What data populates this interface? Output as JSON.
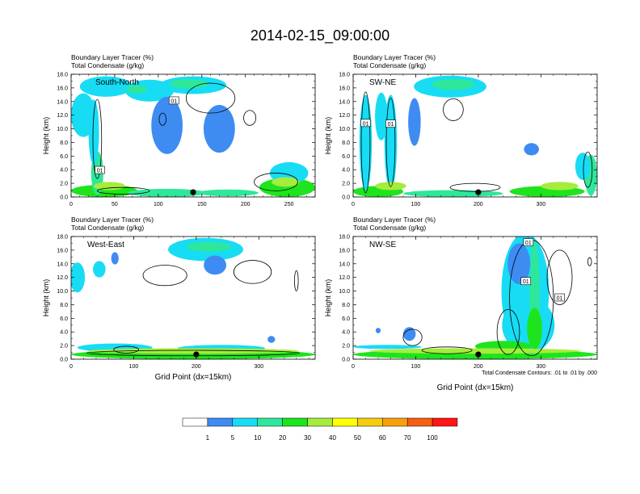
{
  "chart_data": {
    "title": "2014-02-15_09:00:00",
    "field_label": "Boundary Layer Tracer    (%)",
    "contour_field_label": "Total Condensate    (g/kg)",
    "xlabel": "Grid Point (dx=15km)",
    "ylabel": "Height (km)",
    "ylim": [
      0,
      18
    ],
    "y_ticks": [
      "0.0",
      "2.0",
      "4.0",
      "6.0",
      "8.0",
      "10.0",
      "12.0",
      "14.0",
      "16.0",
      "18.0"
    ],
    "contour_info": "Total Condensate Contours: .01 to .01 by .000",
    "colorbar": {
      "levels": [
        "1",
        "5",
        "10",
        "20",
        "30",
        "40",
        "50",
        "60",
        "70",
        "100"
      ],
      "colors": [
        "#ffffff",
        "#3e8cf2",
        "#17dcf4",
        "#2ee79a",
        "#1ee41e",
        "#a6ec3c",
        "#ffff05",
        "#f5cc0e",
        "#f7a00c",
        "#f55f13",
        "#ff1515"
      ]
    },
    "panels": [
      {
        "type": "heatmap",
        "section": "South-North",
        "xlim": [
          0,
          280
        ],
        "x_ticks": [
          0,
          50,
          100,
          150,
          200,
          250
        ],
        "marker_x": 140,
        "contour_labels": [
          {
            "x": 118,
            "y": 14.1,
            "text": "01"
          },
          {
            "x": 33,
            "y": 3.9,
            "text": "01"
          }
        ],
        "blobs": [
          {
            "cx": 38,
            "cy": 0.9,
            "rx": 38,
            "ry": 0.9,
            "v": 4
          },
          {
            "cx": 110,
            "cy": 0.6,
            "rx": 45,
            "ry": 0.6,
            "v": 3
          },
          {
            "cx": 180,
            "cy": 0.6,
            "rx": 35,
            "ry": 0.5,
            "v": 3
          },
          {
            "cx": 248,
            "cy": 1.4,
            "rx": 32,
            "ry": 1.4,
            "v": 4
          },
          {
            "cx": 250,
            "cy": 3.5,
            "rx": 22,
            "ry": 1.6,
            "v": 2
          },
          {
            "cx": 30,
            "cy": 3.5,
            "rx": 7,
            "ry": 3.2,
            "v": 3
          },
          {
            "cx": 26,
            "cy": 9.5,
            "rx": 6,
            "ry": 4.8,
            "v": 2
          },
          {
            "cx": 14,
            "cy": 12,
            "rx": 14,
            "ry": 3.2,
            "v": 2
          },
          {
            "cx": 40,
            "cy": 16.2,
            "rx": 30,
            "ry": 1.5,
            "v": 2
          },
          {
            "cx": 90,
            "cy": 15.6,
            "rx": 28,
            "ry": 1.6,
            "v": 2
          },
          {
            "cx": 140,
            "cy": 16.4,
            "rx": 38,
            "ry": 1.3,
            "v": 2
          },
          {
            "cx": 110,
            "cy": 10.5,
            "rx": 18,
            "ry": 4.2,
            "v": 1
          },
          {
            "cx": 170,
            "cy": 10,
            "rx": 18,
            "ry": 3.5,
            "v": 1
          },
          {
            "cx": 135,
            "cy": 16.6,
            "rx": 22,
            "ry": 0.7,
            "v": 3
          },
          {
            "cx": 44,
            "cy": 1.6,
            "rx": 18,
            "ry": 0.6,
            "v": 5
          },
          {
            "cx": 246,
            "cy": 2.2,
            "rx": 16,
            "ry": 0.7,
            "v": 5
          },
          {
            "cx": 75,
            "cy": 15.8,
            "rx": 12,
            "ry": 0.6,
            "v": 3
          }
        ],
        "contours": [
          {
            "cx": 30,
            "cy": 8.5,
            "rx": 5,
            "ry": 5.8
          },
          {
            "cx": 160,
            "cy": 14.5,
            "rx": 28,
            "ry": 2.2
          },
          {
            "cx": 205,
            "cy": 11.6,
            "rx": 7,
            "ry": 1.1
          },
          {
            "cx": 105,
            "cy": 11.4,
            "rx": 4,
            "ry": 0.9
          },
          {
            "cx": 235,
            "cy": 2.2,
            "rx": 25,
            "ry": 1.3
          },
          {
            "cx": 60,
            "cy": 0.9,
            "rx": 30,
            "ry": 0.5
          }
        ]
      },
      {
        "type": "heatmap",
        "section": "SW-NE",
        "xlim": [
          0,
          390
        ],
        "x_ticks": [
          0,
          100,
          200,
          300
        ],
        "marker_x": 200,
        "contour_labels": [
          {
            "x": 60,
            "y": 10.7,
            "text": "01"
          },
          {
            "x": 20,
            "y": 10.8,
            "text": "01"
          }
        ],
        "blobs": [
          {
            "cx": 40,
            "cy": 0.8,
            "rx": 40,
            "ry": 0.8,
            "v": 4
          },
          {
            "cx": 160,
            "cy": 0.5,
            "rx": 80,
            "ry": 0.5,
            "v": 3
          },
          {
            "cx": 310,
            "cy": 0.8,
            "rx": 60,
            "ry": 0.8,
            "v": 4
          },
          {
            "cx": 380,
            "cy": 3.2,
            "rx": 10,
            "ry": 3,
            "v": 3
          },
          {
            "cx": 20,
            "cy": 8,
            "rx": 10,
            "ry": 7,
            "v": 2
          },
          {
            "cx": 60,
            "cy": 8,
            "rx": 10,
            "ry": 7,
            "v": 2
          },
          {
            "cx": 45,
            "cy": 11.8,
            "rx": 10,
            "ry": 3.5,
            "v": 2
          },
          {
            "cx": 155,
            "cy": 16.2,
            "rx": 58,
            "ry": 1.6,
            "v": 2
          },
          {
            "cx": 98,
            "cy": 11,
            "rx": 10,
            "ry": 3.5,
            "v": 1
          },
          {
            "cx": 285,
            "cy": 7,
            "rx": 12,
            "ry": 0.9,
            "v": 1
          },
          {
            "cx": 367,
            "cy": 4.5,
            "rx": 12,
            "ry": 2,
            "v": 2
          },
          {
            "cx": 60,
            "cy": 1.6,
            "rx": 25,
            "ry": 0.6,
            "v": 5
          },
          {
            "cx": 330,
            "cy": 1.6,
            "rx": 30,
            "ry": 0.6,
            "v": 5
          },
          {
            "cx": 160,
            "cy": 16.5,
            "rx": 34,
            "ry": 0.8,
            "v": 3
          }
        ],
        "contours": [
          {
            "cx": 20,
            "cy": 8,
            "rx": 7,
            "ry": 7.4
          },
          {
            "cx": 60,
            "cy": 8,
            "rx": 7,
            "ry": 6.5
          },
          {
            "cx": 160,
            "cy": 12.8,
            "rx": 16,
            "ry": 1.6
          },
          {
            "cx": 195,
            "cy": 1.4,
            "rx": 40,
            "ry": 0.6
          },
          {
            "cx": 375,
            "cy": 4,
            "rx": 7,
            "ry": 2.6
          }
        ]
      },
      {
        "type": "heatmap",
        "section": "West-East",
        "xlim": [
          0,
          390
        ],
        "x_ticks": [
          0,
          100,
          200,
          300
        ],
        "marker_x": 200,
        "contour_labels": [],
        "blobs": [
          {
            "cx": 195,
            "cy": 0.7,
            "rx": 195,
            "ry": 0.7,
            "v": 4
          },
          {
            "cx": 70,
            "cy": 1.7,
            "rx": 60,
            "ry": 0.6,
            "v": 2
          },
          {
            "cx": 240,
            "cy": 1.6,
            "rx": 70,
            "ry": 0.5,
            "v": 2
          },
          {
            "cx": 320,
            "cy": 2.9,
            "rx": 6,
            "ry": 0.5,
            "v": 1
          },
          {
            "cx": 215,
            "cy": 16.1,
            "rx": 60,
            "ry": 1.7,
            "v": 2
          },
          {
            "cx": 230,
            "cy": 13.8,
            "rx": 18,
            "ry": 1.4,
            "v": 1
          },
          {
            "cx": 10,
            "cy": 12,
            "rx": 12,
            "ry": 2.2,
            "v": 2
          },
          {
            "cx": 45,
            "cy": 13.2,
            "rx": 10,
            "ry": 1.2,
            "v": 2
          },
          {
            "cx": 70,
            "cy": 14.8,
            "rx": 6,
            "ry": 0.9,
            "v": 1
          },
          {
            "cx": 220,
            "cy": 16.5,
            "rx": 36,
            "ry": 0.7,
            "v": 3
          },
          {
            "cx": 195,
            "cy": 1.2,
            "rx": 170,
            "ry": 0.4,
            "v": 5
          }
        ],
        "contours": [
          {
            "cx": 150,
            "cy": 12.3,
            "rx": 35,
            "ry": 1.5
          },
          {
            "cx": 290,
            "cy": 12.8,
            "rx": 30,
            "ry": 1.7
          },
          {
            "cx": 360,
            "cy": 11.5,
            "rx": 3,
            "ry": 1.5
          },
          {
            "cx": 195,
            "cy": 0.9,
            "rx": 170,
            "ry": 0.4
          },
          {
            "cx": 88,
            "cy": 1.4,
            "rx": 20,
            "ry": 0.5
          }
        ]
      },
      {
        "type": "heatmap",
        "section": "NW-SE",
        "xlim": [
          0,
          390
        ],
        "x_ticks": [
          0,
          100,
          200,
          300
        ],
        "marker_x": 200,
        "contour_labels": [
          {
            "x": 280,
            "y": 17.1,
            "text": "01"
          },
          {
            "x": 276,
            "y": 11.4,
            "text": "01"
          },
          {
            "x": 330,
            "y": 9.0,
            "text": "01"
          }
        ],
        "blobs": [
          {
            "cx": 195,
            "cy": 0.7,
            "rx": 195,
            "ry": 0.7,
            "v": 4
          },
          {
            "cx": 55,
            "cy": 1.8,
            "rx": 55,
            "ry": 0.3,
            "v": 2
          },
          {
            "cx": 275,
            "cy": 10,
            "rx": 38,
            "ry": 8.5,
            "v": 2
          },
          {
            "cx": 280,
            "cy": 5,
            "rx": 42,
            "ry": 4,
            "v": 2
          },
          {
            "cx": 265,
            "cy": 14,
            "rx": 18,
            "ry": 3,
            "v": 1
          },
          {
            "cx": 290,
            "cy": 9,
            "rx": 8,
            "ry": 8.5,
            "v": 3
          },
          {
            "cx": 90,
            "cy": 3.7,
            "rx": 10,
            "ry": 1,
            "v": 1
          },
          {
            "cx": 40,
            "cy": 4.2,
            "rx": 4,
            "ry": 0.4,
            "v": 1
          },
          {
            "cx": 240,
            "cy": 1.9,
            "rx": 45,
            "ry": 0.8,
            "v": 4
          },
          {
            "cx": 195,
            "cy": 1.2,
            "rx": 170,
            "ry": 0.4,
            "v": 5
          },
          {
            "cx": 290,
            "cy": 4.5,
            "rx": 12,
            "ry": 3,
            "v": 4
          }
        ],
        "contours": [
          {
            "cx": 285,
            "cy": 9,
            "rx": 35,
            "ry": 8.5
          },
          {
            "cx": 330,
            "cy": 12,
            "rx": 20,
            "ry": 4
          },
          {
            "cx": 95,
            "cy": 3.2,
            "rx": 15,
            "ry": 1.2
          },
          {
            "cx": 150,
            "cy": 1.3,
            "rx": 40,
            "ry": 0.5
          },
          {
            "cx": 248,
            "cy": 4,
            "rx": 18,
            "ry": 3.3
          },
          {
            "cx": 378,
            "cy": 14.3,
            "rx": 3,
            "ry": 0.6
          }
        ]
      }
    ]
  }
}
